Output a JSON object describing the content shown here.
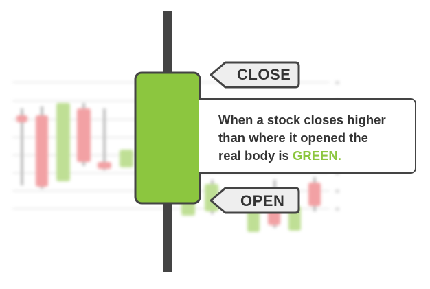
{
  "close_label": "CLOSE",
  "open_label": "OPEN",
  "description": {
    "line1": "When a stock closes higher",
    "line2": "than where it opened the",
    "line3_prefix": "real body is ",
    "highlight": "GREEN."
  },
  "colors": {
    "bullish": "#8cc63f",
    "bearish": "#e8555a",
    "wick": "#444444",
    "tag_fill": "#eeeeee",
    "outline": "#444444",
    "text": "#333333"
  },
  "icons": {
    "close_pointer": "arrow-tag-left-icon",
    "open_pointer": "arrow-tag-left-icon"
  }
}
